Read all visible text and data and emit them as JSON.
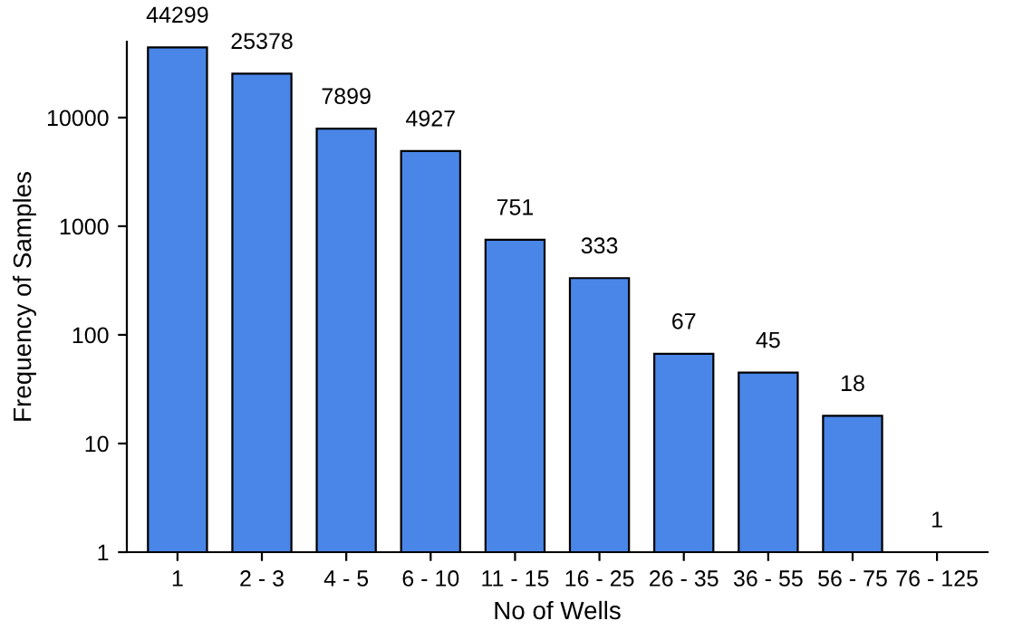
{
  "chart_data": {
    "type": "bar",
    "xlabel": "No of Wells",
    "ylabel": "Frequency of Samples",
    "categories": [
      "1",
      "2 - 3",
      "4 - 5",
      "6 - 10",
      "11 - 15",
      "16 - 25",
      "26 - 35",
      "36 - 55",
      "56 - 75",
      "76 - 125"
    ],
    "values": [
      44299,
      25378,
      7899,
      4927,
      751,
      333,
      67,
      45,
      18,
      1
    ],
    "color": "#4a86e8",
    "log": true,
    "ylim": [
      1,
      50000
    ],
    "yticks": [
      1,
      10,
      100,
      1000,
      10000
    ],
    "data_labels": true,
    "grid": false
  }
}
